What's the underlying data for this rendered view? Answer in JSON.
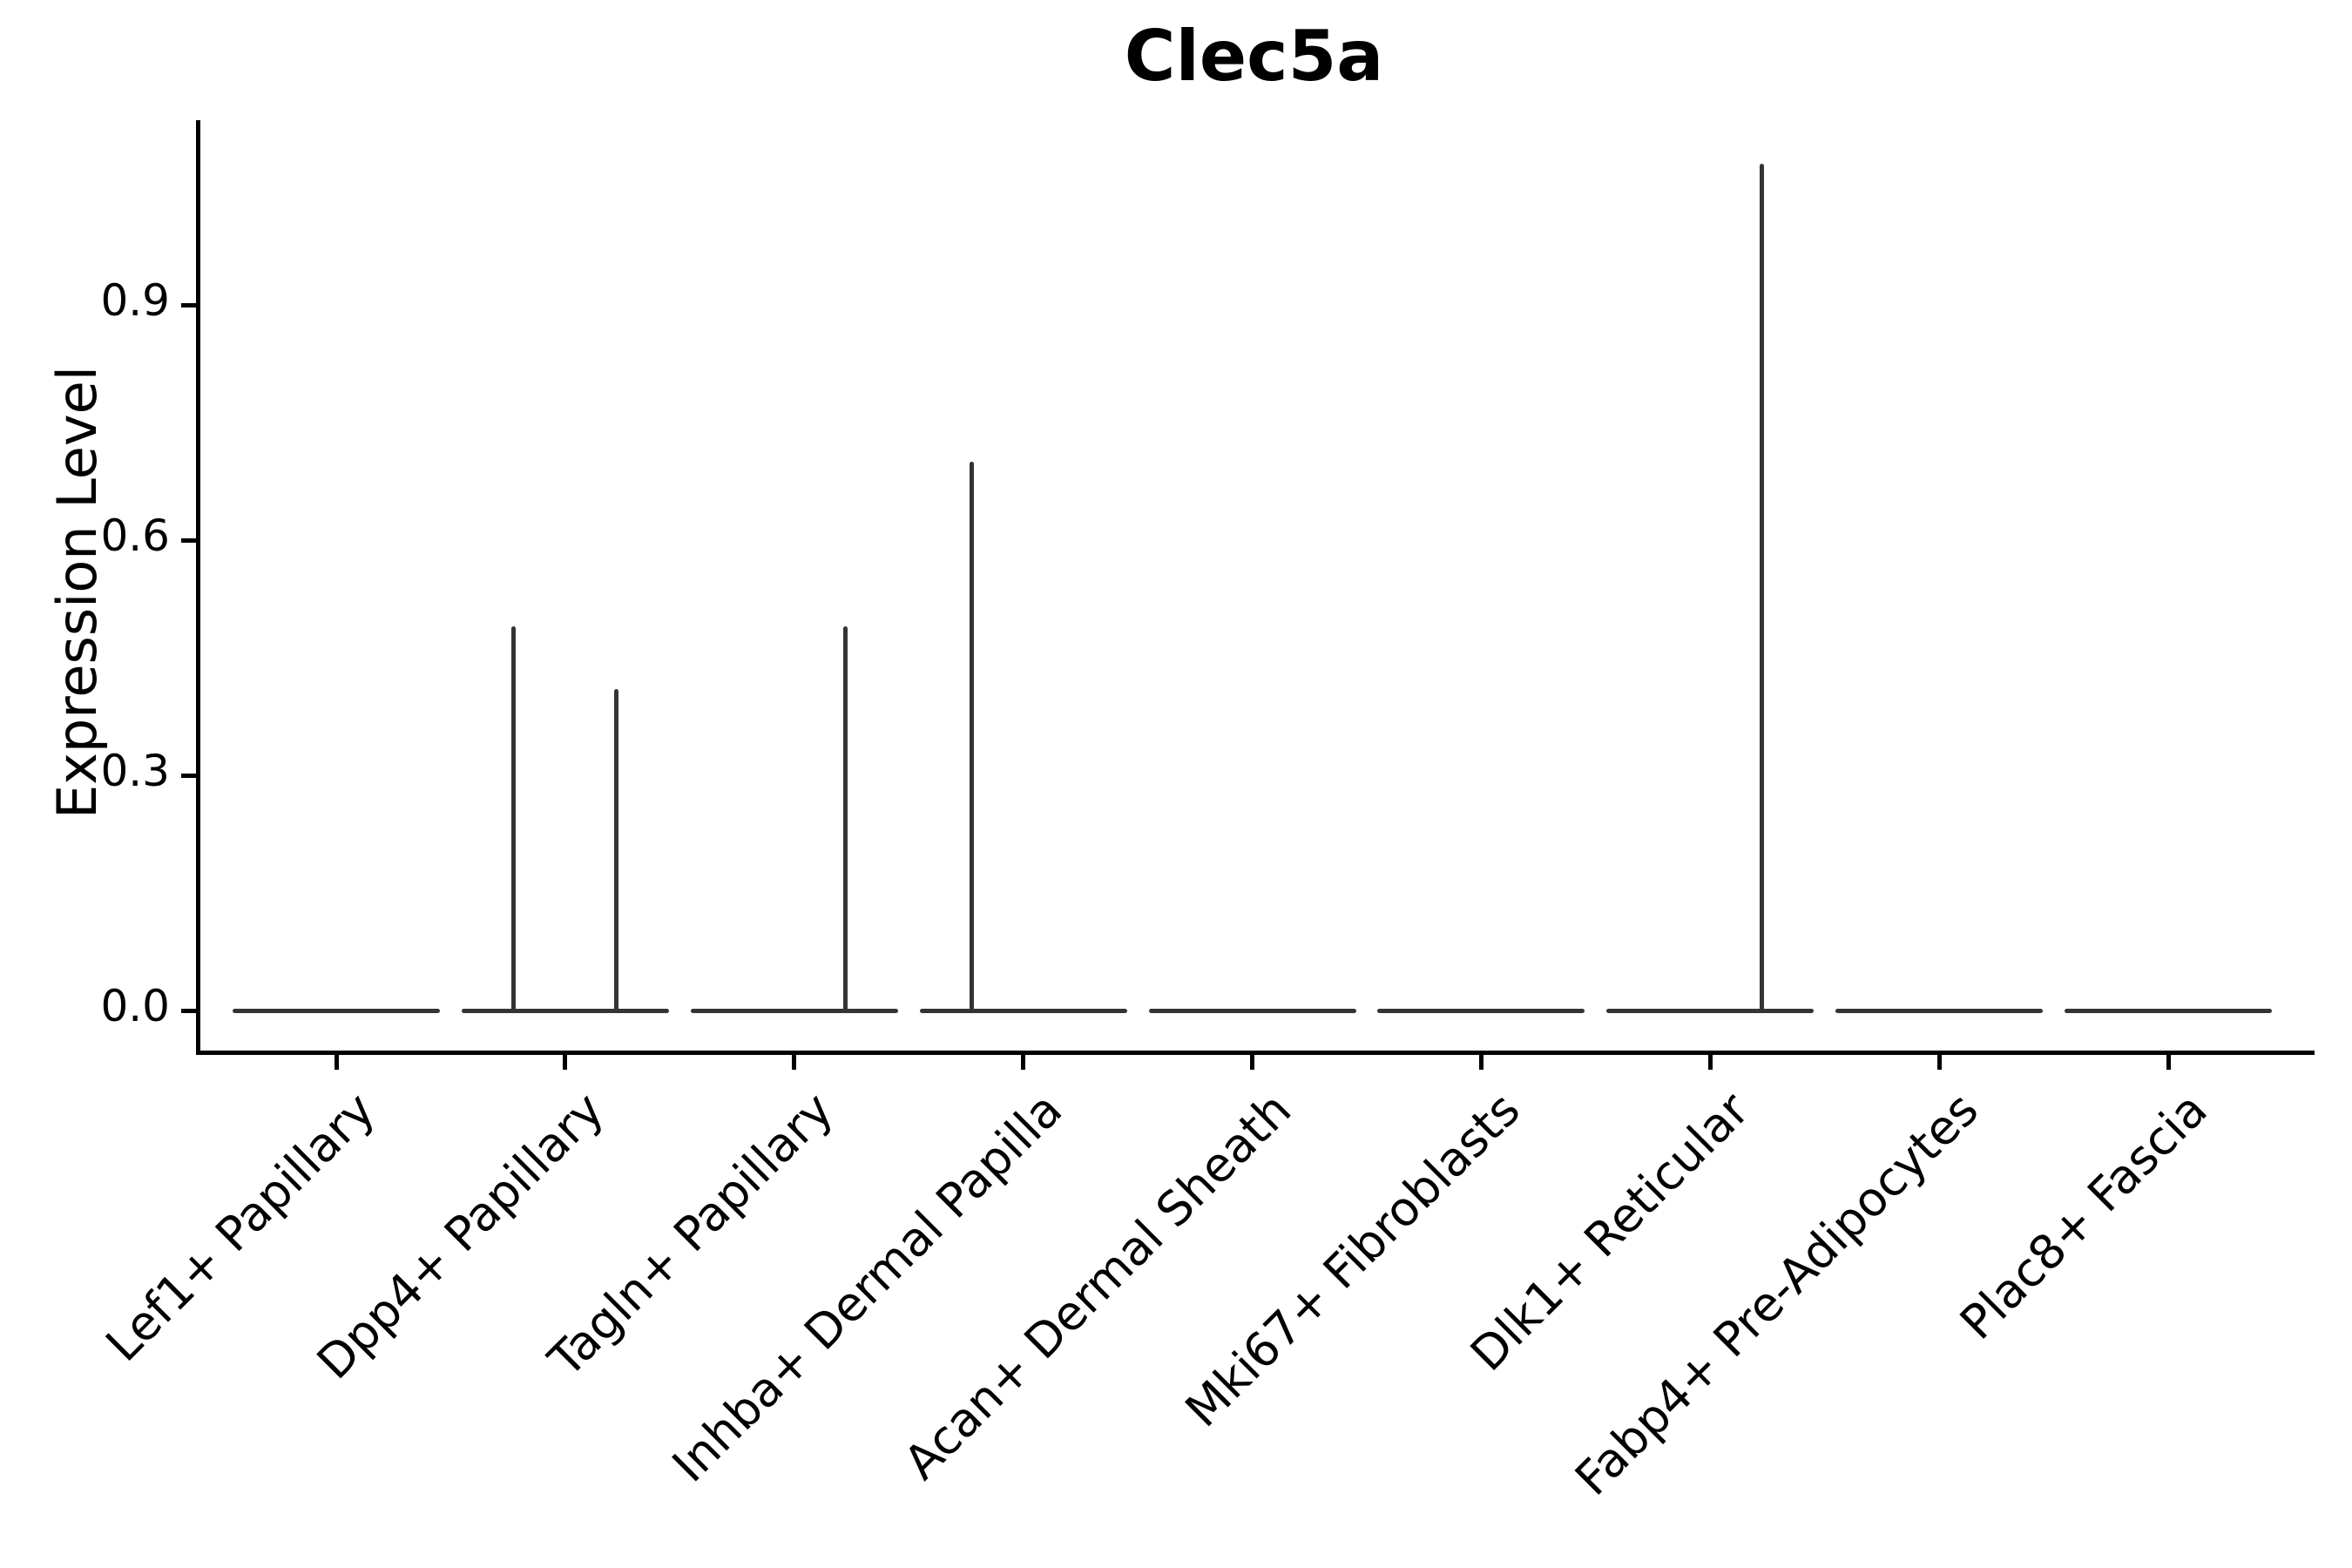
{
  "title": "Clec5a",
  "y_axis": {
    "label": "Expression Level",
    "tick_labels": [
      "0.0",
      "0.3",
      "0.6",
      "0.9"
    ],
    "tick_values": [
      0.0,
      0.3,
      0.6,
      0.9
    ]
  },
  "x_axis": {
    "categories": [
      "Lef1+ Papillary",
      "Dpp4+ Papillary",
      "Tagln+ Papillary",
      "Inhba+ Dermal Papilla",
      "Acan+ Dermal Sheath",
      "Mki67+ Fibroblasts",
      "Dlk1+ Reticular",
      "Fabp4+ Pre-Adipocytes",
      "Plac8+ Fascia"
    ]
  },
  "colors": {
    "violin": "#343434",
    "axis": "#000000",
    "text": "#000000",
    "background": "#ffffff"
  },
  "chart_data": {
    "type": "violin",
    "title": "Clec5a",
    "xlabel": "",
    "ylabel": "Expression Level",
    "ylim": [
      0,
      1.13
    ],
    "yticks": [
      0.0,
      0.3,
      0.6,
      0.9
    ],
    "grid": false,
    "legend": "none",
    "violin_body_width": 0.9,
    "categories": [
      "Lef1+ Papillary",
      "Dpp4+ Papillary",
      "Tagln+ Papillary",
      "Inhba+ Dermal Papilla",
      "Acan+ Dermal Sheath",
      "Mki67+ Fibroblasts",
      "Dlk1+ Reticular",
      "Fabp4+ Pre-Adipocytes",
      "Plac8+ Fascia"
    ],
    "series": [
      {
        "name": "Lef1+ Papillary",
        "bulk_at_zero": true,
        "max_expression": 0,
        "spikes": []
      },
      {
        "name": "Dpp4+ Papillary",
        "bulk_at_zero": true,
        "max_expression": 0.49,
        "spikes": [
          {
            "offset": -0.226,
            "peak": 0.49
          },
          {
            "offset": 0.222,
            "peak": 0.41
          }
        ]
      },
      {
        "name": "Tagln+ Papillary",
        "bulk_at_zero": true,
        "max_expression": 0.49,
        "spikes": [
          {
            "offset": 0.222,
            "peak": 0.49
          }
        ]
      },
      {
        "name": "Inhba+ Dermal Papilla",
        "bulk_at_zero": true,
        "max_expression": 0.7,
        "spikes": [
          {
            "offset": -0.226,
            "peak": 0.7
          }
        ]
      },
      {
        "name": "Acan+ Dermal Sheath",
        "bulk_at_zero": true,
        "max_expression": 0,
        "spikes": []
      },
      {
        "name": "Mki67+ Fibroblasts",
        "bulk_at_zero": true,
        "max_expression": 0,
        "spikes": []
      },
      {
        "name": "Dlk1+ Reticular",
        "bulk_at_zero": true,
        "max_expression": 1.08,
        "spikes": [
          {
            "offset": 0.226,
            "peak": 1.08
          }
        ]
      },
      {
        "name": "Fabp4+ Pre-Adipocytes",
        "bulk_at_zero": true,
        "max_expression": 0,
        "spikes": []
      },
      {
        "name": "Plac8+ Fascia",
        "bulk_at_zero": true,
        "max_expression": 0,
        "spikes": []
      }
    ]
  }
}
